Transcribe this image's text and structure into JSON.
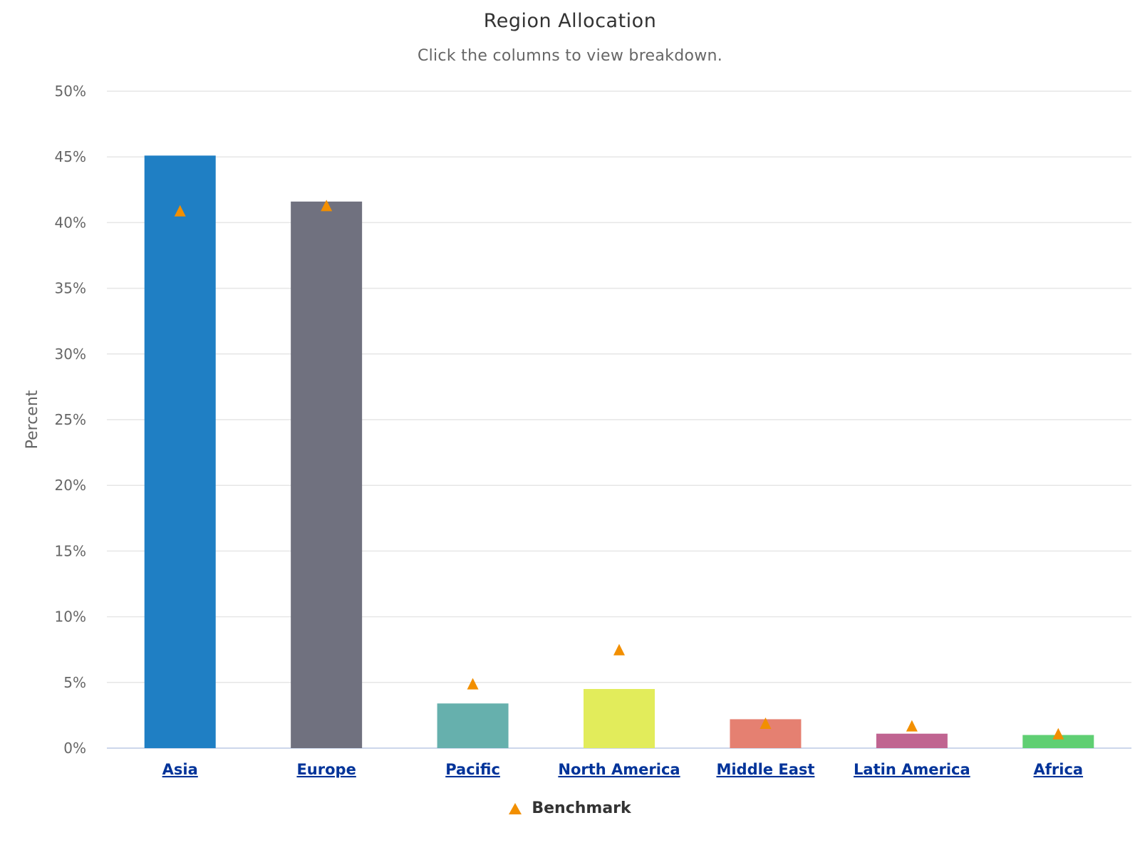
{
  "chart": {
    "title": "Region Allocation",
    "subtitle": "Click the columns to view breakdown.",
    "legend_label": "Benchmark"
  },
  "chart_data": {
    "type": "bar",
    "title": "Region Allocation",
    "subtitle": "Click the columns to view breakdown.",
    "ylabel": "Percent",
    "xlabel": "",
    "ylim": [
      0,
      50
    ],
    "yticks": [
      "0%",
      "5%",
      "10%",
      "15%",
      "20%",
      "25%",
      "30%",
      "35%",
      "40%",
      "45%",
      "50%"
    ],
    "grid": true,
    "legend_position": "bottom-center",
    "categories": [
      "Asia",
      "Europe",
      "Pacific",
      "North America",
      "Middle East",
      "Latin America",
      "Africa"
    ],
    "series": [
      {
        "type": "bar",
        "values": [
          45.1,
          41.6,
          3.4,
          4.5,
          2.2,
          1.1,
          1.0
        ],
        "colors": [
          "#1f7fc4",
          "#70717f",
          "#66b0ad",
          "#e2ec5b",
          "#e58071",
          "#c06491",
          "#5fcf73"
        ]
      },
      {
        "name": "Benchmark",
        "type": "scatter",
        "marker": "triangle",
        "color": "#f28f00",
        "values": [
          40.9,
          41.3,
          4.9,
          7.5,
          1.9,
          1.7,
          1.1
        ]
      }
    ]
  }
}
